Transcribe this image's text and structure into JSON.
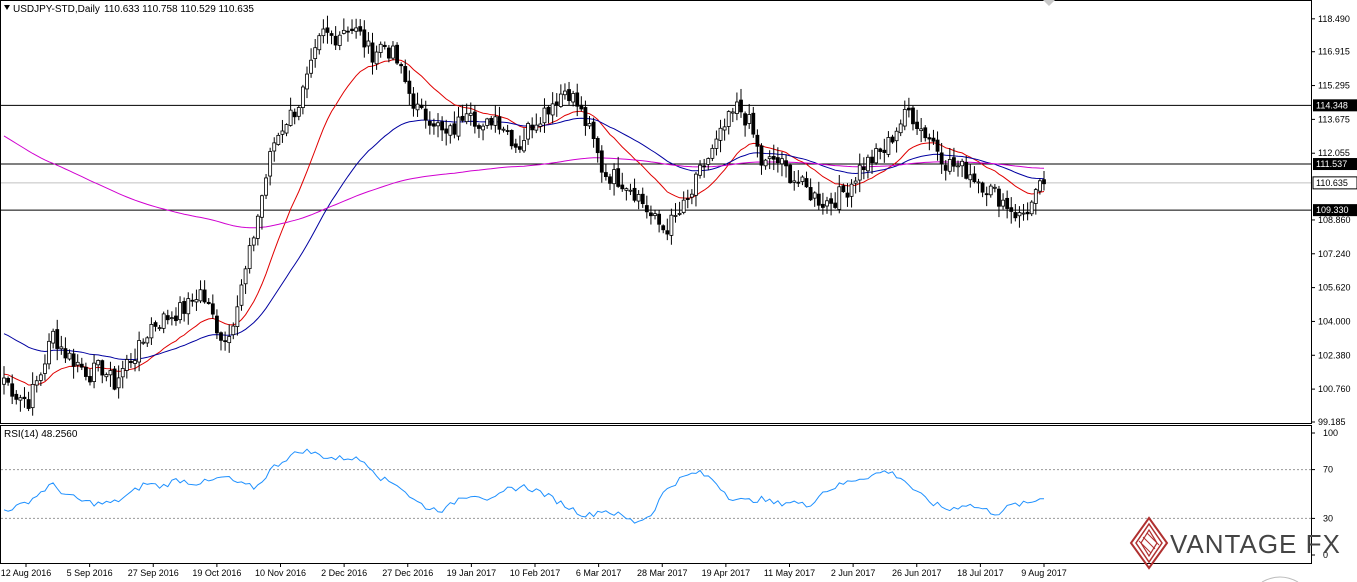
{
  "header": {
    "symbol_line": "USDJPY-STD,Daily",
    "ohlc": "110.633 110.758 110.529 110.635"
  },
  "rsi": {
    "label": "RSI(14) 48.2560",
    "levels": [
      "100",
      "70",
      "30",
      "0"
    ],
    "level_values": [
      100,
      70,
      30,
      0
    ],
    "color": "#1e90ff"
  },
  "logo": {
    "text": "VANTAGE FX"
  },
  "colors": {
    "candle": "#000000",
    "ema_fast": "#e00000",
    "ema_slow": "#0000a0",
    "ema_long": "#d000d0",
    "tag_bg": "#000000"
  },
  "chart_data": {
    "type": "candlestick",
    "ylim": [
      99.185,
      119.2
    ],
    "y_ticks": [
      "118.490",
      "116.915",
      "115.295",
      "113.675",
      "112.055",
      "108.860",
      "107.240",
      "105.620",
      "104.000",
      "102.380",
      "100.760",
      "99.185"
    ],
    "y_tick_values": [
      118.49,
      116.915,
      115.295,
      113.675,
      112.055,
      108.86,
      107.24,
      105.62,
      104.0,
      102.38,
      100.76,
      99.185
    ],
    "x_labels": [
      "12 Aug 2016",
      "5 Sep 2016",
      "27 Sep 2016",
      "19 Oct 2016",
      "10 Nov 2016",
      "2 Dec 2016",
      "27 Dec 2016",
      "19 Jan 2017",
      "10 Feb 2017",
      "6 Mar 2017",
      "28 Mar 2017",
      "19 Apr 2017",
      "11 May 2017",
      "2 Jun 2017",
      "26 Jun 2017",
      "18 Jul 2017",
      "9 Aug 2017"
    ],
    "horizontal_levels": [
      {
        "label": "114.348",
        "value": 114.348
      },
      {
        "label": "111.537",
        "value": 111.537
      },
      {
        "label": "109.330",
        "value": 109.33
      }
    ],
    "current_price": {
      "label": "110.635",
      "value": 110.635
    },
    "price_path": [
      101.3,
      100.5,
      100.2,
      101.5,
      103.4,
      102.5,
      102.0,
      101.5,
      101.8,
      101.0,
      102.0,
      102.6,
      103.8,
      104.1,
      104.4,
      104.7,
      105.5,
      104.3,
      103.0,
      104.6,
      107.0,
      109.8,
      112.5,
      113.6,
      114.3,
      115.9,
      117.8,
      117.6,
      118.2,
      117.8,
      116.8,
      117.3,
      116.6,
      115.1,
      113.9,
      113.8,
      112.8,
      113.3,
      114.6,
      112.9,
      113.9,
      113.3,
      112.3,
      113.4,
      114.0,
      114.6,
      115.2,
      114.2,
      112.9,
      111.1,
      110.9,
      110.6,
      109.9,
      108.9,
      108.4,
      109.0,
      109.8,
      111.3,
      112.2,
      113.4,
      114.3,
      113.4,
      111.4,
      111.8,
      111.2,
      110.6,
      110.1,
      109.7,
      109.9,
      110.4,
      111.4,
      111.8,
      112.2,
      113.3,
      114.1,
      113.2,
      112.6,
      111.6,
      111.4,
      111.1,
      110.6,
      110.1,
      109.6,
      109.0,
      109.6,
      110.7
    ],
    "rsi_path": [
      37,
      40,
      48,
      58,
      49,
      44,
      42,
      43,
      50,
      59,
      56,
      62,
      59,
      60,
      64,
      58,
      55,
      71,
      80,
      86,
      82,
      79,
      80,
      76,
      62,
      58,
      45,
      38,
      37,
      48,
      50,
      44,
      54,
      56,
      52,
      45,
      38,
      32,
      37,
      33,
      27,
      32,
      54,
      63,
      68,
      62,
      48,
      44,
      46,
      42,
      44,
      40,
      52,
      57,
      62,
      65,
      69,
      63,
      50,
      42,
      37,
      42,
      38,
      34,
      41,
      42,
      48
    ]
  }
}
